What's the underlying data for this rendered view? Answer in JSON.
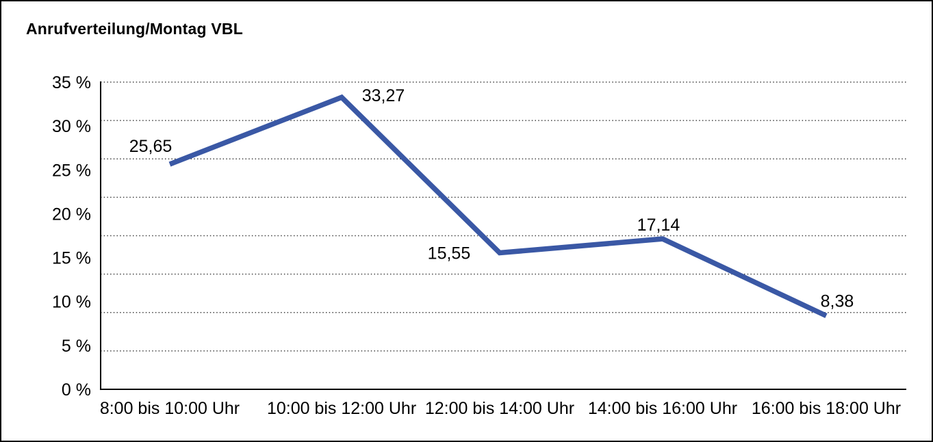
{
  "window": {
    "background": "#FFFFFF",
    "border_color": "#000000"
  },
  "chart_data": {
    "type": "line",
    "title": "Anrufverteilung/Montag VBL",
    "categories": [
      "8:00 bis 10:00 Uhr",
      "10:00 bis 12:00 Uhr",
      "12:00 bis 14:00 Uhr",
      "14:00 bis 16:00 Uhr",
      "16:00 bis 18:00 Uhr"
    ],
    "values": [
      25.65,
      33.27,
      15.55,
      17.14,
      8.38
    ],
    "point_labels": [
      "25,65",
      "33,27",
      "15,55",
      "17,14",
      "8,38"
    ],
    "xlabel": "",
    "ylabel": "",
    "ylim": [
      0,
      35
    ],
    "y_ticks": [
      0,
      5,
      10,
      15,
      20,
      25,
      30,
      35
    ],
    "y_tick_labels": [
      "0 %",
      "5 %",
      "10 %",
      "15 %",
      "20 %",
      "25 %",
      "30 %",
      "35 %"
    ],
    "grid": "horizontal-dotted",
    "gridline_count": 8,
    "legend": "none",
    "line_color": "#3A58A5",
    "axis_color": "#000000",
    "grid_color": "#404040",
    "text_color": "#000000",
    "background": "#FFFFFF"
  }
}
